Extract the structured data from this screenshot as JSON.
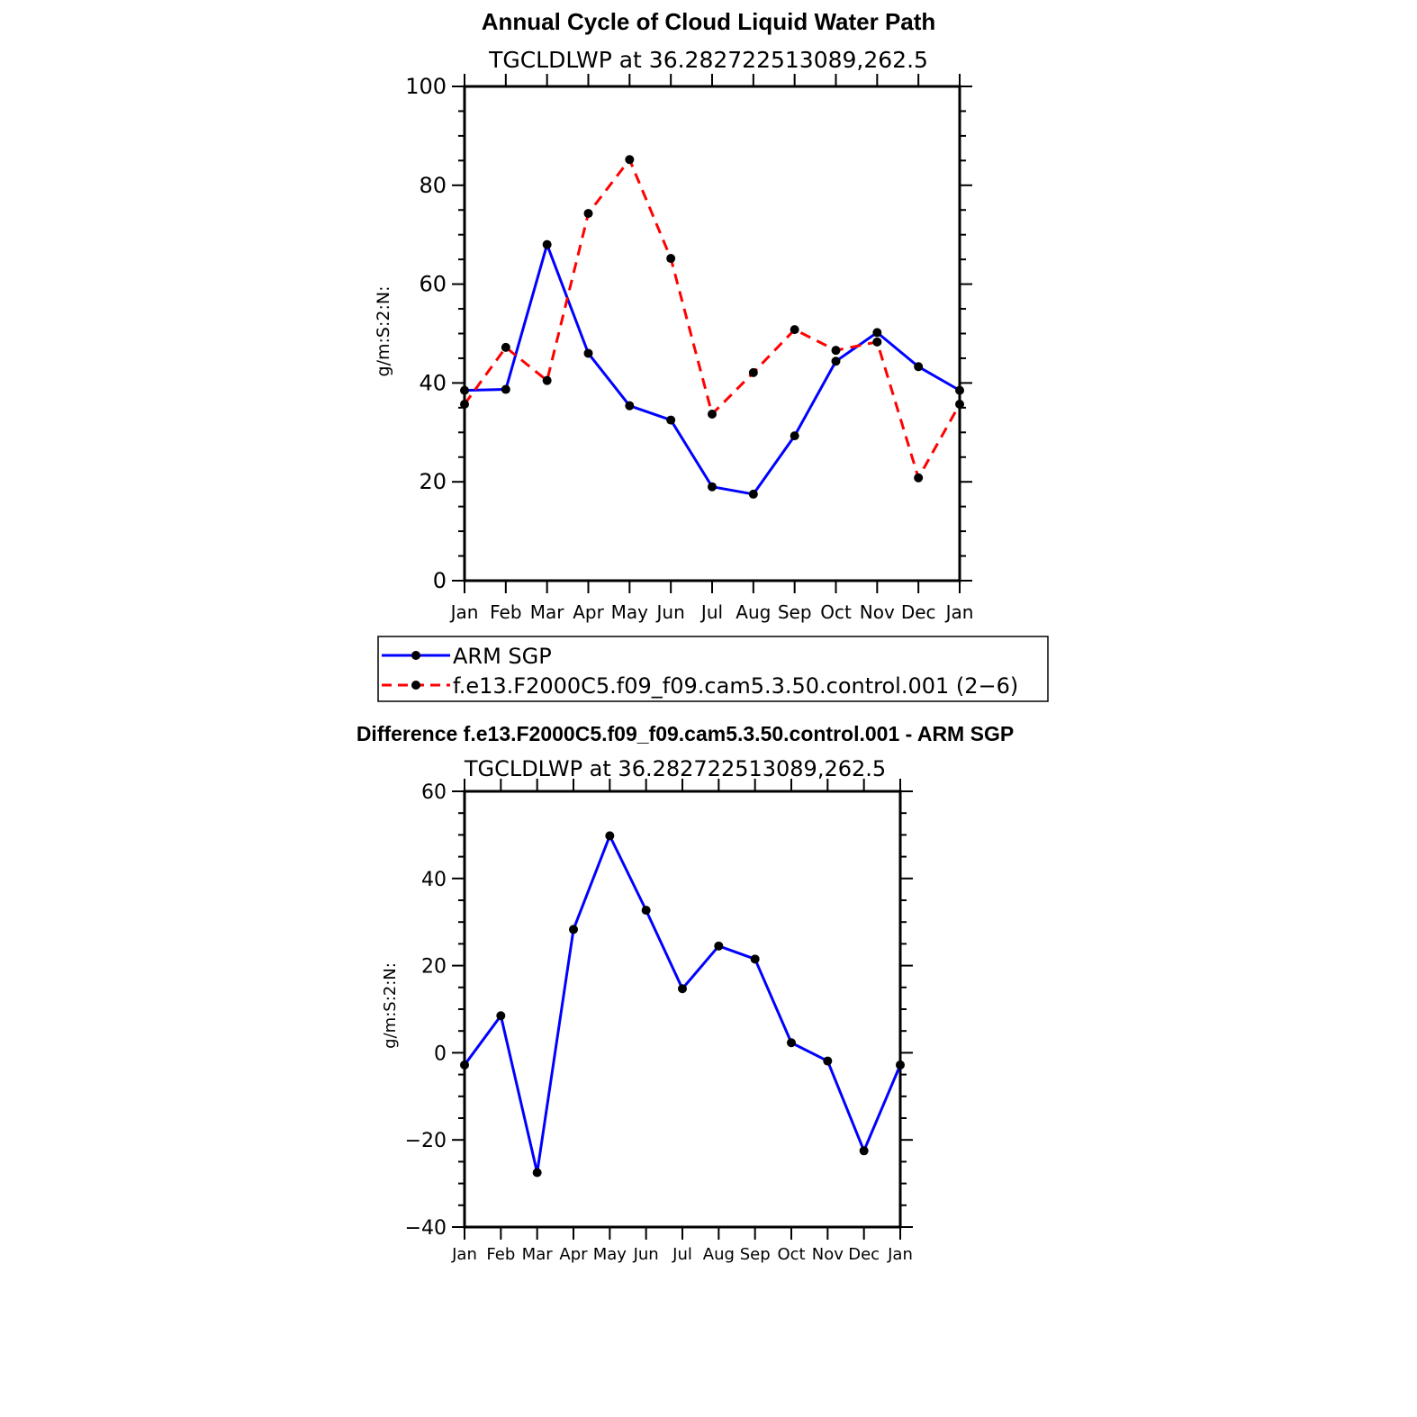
{
  "chart_data": [
    {
      "type": "line",
      "title": "Annual Cycle of Cloud Liquid Water Path",
      "subtitle": "TGCLDLWP at 36.282722513089,262.5",
      "ylabel": "g/m:S:2:N:",
      "xlabel": "",
      "categories": [
        "Jan",
        "Feb",
        "Mar",
        "Apr",
        "May",
        "Jun",
        "Jul",
        "Aug",
        "Sep",
        "Oct",
        "Nov",
        "Dec",
        "Jan"
      ],
      "ylim": [
        0,
        100
      ],
      "yticks": [
        0,
        20,
        40,
        60,
        80,
        100
      ],
      "series": [
        {
          "name": "ARM SGP",
          "color": "#0000ff",
          "dash": "solid",
          "values": [
            38.5,
            38.7,
            68.0,
            46.0,
            35.4,
            32.5,
            19.0,
            17.5,
            29.3,
            44.4,
            50.2,
            43.3,
            38.5
          ]
        },
        {
          "name": "f.e13.F2000C5.f09_f09.cam5.3.50.control.001 (2−6)",
          "color": "#ff0000",
          "dash": "dashed",
          "values": [
            35.7,
            47.2,
            40.5,
            74.3,
            85.2,
            65.2,
            33.7,
            42.1,
            50.8,
            46.6,
            48.3,
            20.8,
            35.7
          ]
        }
      ],
      "legend": "bottom"
    },
    {
      "type": "line",
      "title": "Difference f.e13.F2000C5.f09_f09.cam5.3.50.control.001 - ARM SGP",
      "subtitle": "TGCLDLWP at 36.282722513089,262.5",
      "ylabel": "g/m:S:2:N:",
      "xlabel": "",
      "categories": [
        "Jan",
        "Feb",
        "Mar",
        "Apr",
        "May",
        "Jun",
        "Jul",
        "Aug",
        "Sep",
        "Oct",
        "Nov",
        "Dec",
        "Jan"
      ],
      "ylim": [
        -40,
        60
      ],
      "yticks": [
        -40,
        -20,
        0,
        20,
        40,
        60
      ],
      "ytick_labels": [
        "−40",
        "−20",
        "0",
        "20",
        "40",
        "60"
      ],
      "series": [
        {
          "name": "Difference",
          "color": "#0000ff",
          "dash": "solid",
          "values": [
            -2.8,
            8.5,
            -27.5,
            28.3,
            49.8,
            32.7,
            14.7,
            24.5,
            21.5,
            2.3,
            -1.9,
            -22.5,
            -2.8
          ]
        }
      ]
    }
  ]
}
